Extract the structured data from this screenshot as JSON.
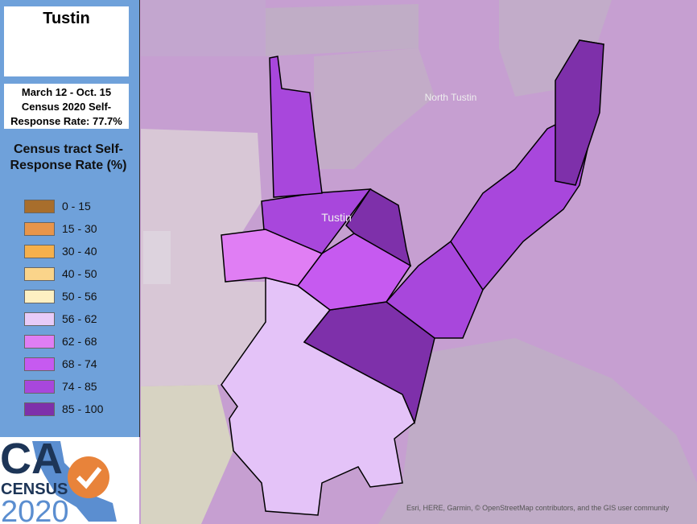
{
  "header": {
    "title": "Tustin",
    "subtitle_lines": [
      "March 12 - Oct. 15",
      "Census 2020 Self-",
      "Response Rate: 77.7%"
    ]
  },
  "legend": {
    "title": "Census tract Self-Response Rate (%)",
    "items": [
      {
        "label": "0 - 15",
        "color": "#a86e2c"
      },
      {
        "label": "15 - 30",
        "color": "#e8954a"
      },
      {
        "label": "30 - 40",
        "color": "#f5b04c"
      },
      {
        "label": "40 - 50",
        "color": "#fad48a"
      },
      {
        "label": "50 - 56",
        "color": "#fdf0c2"
      },
      {
        "label": "56 - 62",
        "color": "#e7cbf8"
      },
      {
        "label": "62 - 68",
        "color": "#e07ef4"
      },
      {
        "label": "68 - 74",
        "color": "#c65af0"
      },
      {
        "label": "74 - 85",
        "color": "#a847dc"
      },
      {
        "label": "85 - 100",
        "color": "#7e30aa"
      }
    ]
  },
  "map": {
    "labels": [
      "North Tustin",
      "Tustin"
    ],
    "attribution": "Esri, HERE, Garmin, © OpenStreetMap contributors, and the GIS user community"
  },
  "logo": {
    "line1": "CA",
    "line2": "CENSUS",
    "line3": "2020"
  }
}
